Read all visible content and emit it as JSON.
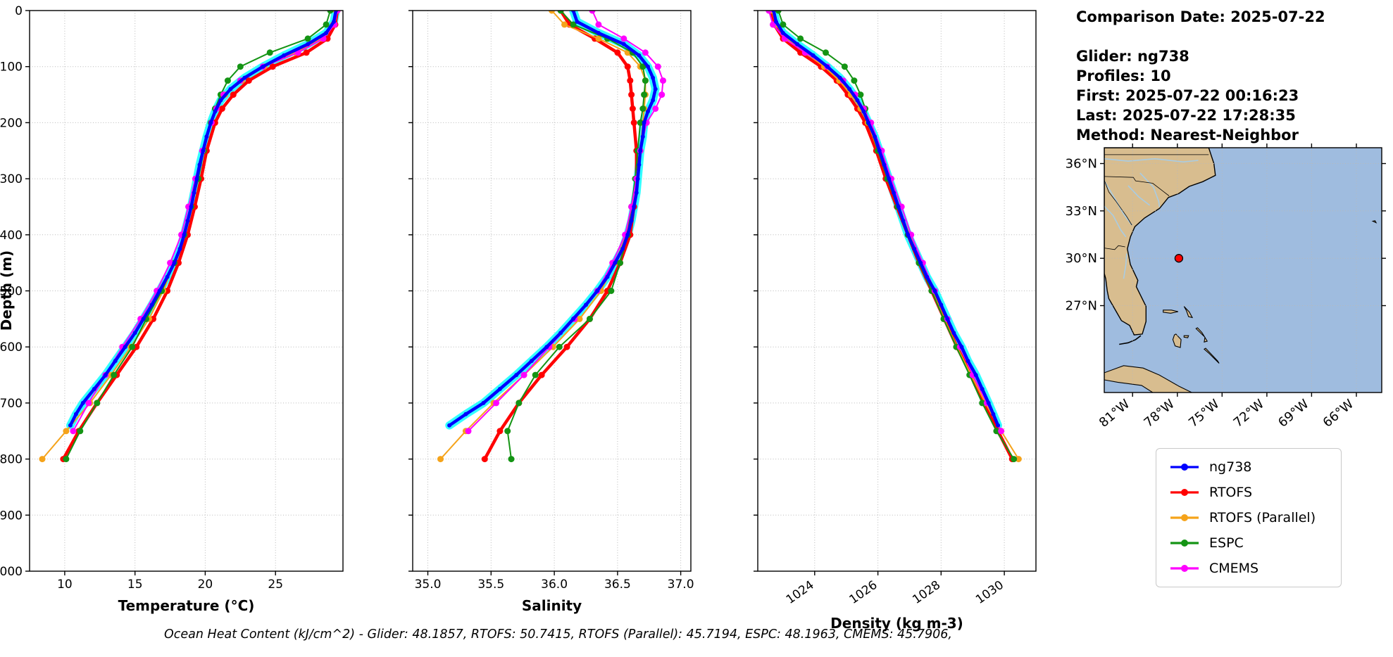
{
  "info": {
    "comparison_date": "Comparison Date: 2025-07-22",
    "glider": "Glider: ng738",
    "profiles": "Profiles: 10",
    "first": "First: 2025-07-22 00:16:23",
    "last": "Last: 2025-07-22 17:28:35",
    "method": "Method: Nearest-Neighbor"
  },
  "footer": {
    "text": "Ocean Heat Content (kJ/cm^2) - Glider: 48.1857,  RTOFS: 50.7415,  RTOFS (Parallel): 45.7194,  ESPC: 48.1963,  CMEMS: 45.7906,"
  },
  "legend": {
    "items": [
      {
        "label": "ng738",
        "color": "#0000ff"
      },
      {
        "label": "RTOFS",
        "color": "#ff0000"
      },
      {
        "label": "RTOFS (Parallel)",
        "color": "#f5a31a"
      },
      {
        "label": "ESPC",
        "color": "#149414"
      },
      {
        "label": "CMEMS",
        "color": "#ff00ff"
      }
    ]
  },
  "map": {
    "extent": {
      "lon": [
        -82.9,
        -64.3
      ],
      "lat": [
        21.5,
        37.0
      ]
    },
    "ocean_color": "#9fbcdf",
    "land_color": "#d8bd8f",
    "river_color": "#a9cce3",
    "lat_ticks": [
      {
        "value": 36,
        "label": "36°N"
      },
      {
        "value": 33,
        "label": "33°N"
      },
      {
        "value": 30,
        "label": "30°N"
      },
      {
        "value": 27,
        "label": "27°N"
      }
    ],
    "lon_ticks": [
      {
        "value": -81,
        "label": "81°W"
      },
      {
        "value": -78,
        "label": "78°W"
      },
      {
        "value": -75,
        "label": "75°W"
      },
      {
        "value": -72,
        "label": "72°W"
      },
      {
        "value": -69,
        "label": "69°W"
      },
      {
        "value": -66,
        "label": "66°W"
      }
    ],
    "marker": {
      "lon": -77.9,
      "lat": 30.0,
      "color": "#ff0000"
    }
  },
  "chart_data": [
    {
      "type": "line",
      "name": "temperature",
      "xlabel": "Temperature (°C)",
      "ylabel": "Depth (m)",
      "xlim": [
        7.5,
        29.8
      ],
      "ylim": [
        0,
        1000
      ],
      "xticks": [
        10,
        15,
        20,
        25
      ],
      "xtick_labels": [
        "10",
        "15",
        "20",
        "25"
      ],
      "yticks": [
        0,
        100,
        200,
        300,
        400,
        500,
        600,
        700,
        800,
        900,
        1000
      ],
      "ytick_labels": [
        "0",
        "100",
        "200",
        "300",
        "400",
        "500",
        "600",
        "700",
        "800",
        "900",
        "1000"
      ],
      "grid": true,
      "series": [
        {
          "name": "ng738",
          "color": "#0000ff",
          "halo": "#00ffff",
          "width": 4.5,
          "marker": 3,
          "depths": [
            0,
            20,
            40,
            60,
            80,
            100,
            120,
            140,
            160,
            180,
            200,
            225,
            250,
            275,
            300,
            325,
            350,
            375,
            400,
            425,
            450,
            475,
            500,
            525,
            550,
            575,
            600,
            625,
            650,
            675,
            700,
            720,
            740
          ],
          "values": [
            29.3,
            29.15,
            28.6,
            27.3,
            25.6,
            24.1,
            22.8,
            21.8,
            21.1,
            20.7,
            20.4,
            20.1,
            19.85,
            19.6,
            19.4,
            19.2,
            19.0,
            18.75,
            18.5,
            18.2,
            17.8,
            17.3,
            16.75,
            16.2,
            15.6,
            15.0,
            14.3,
            13.6,
            12.9,
            12.1,
            11.3,
            10.8,
            10.4
          ]
        },
        {
          "name": "RTOFS",
          "color": "#ff0000",
          "width": 4.5,
          "marker": 4.5,
          "depths": [
            0,
            25,
            50,
            75,
            100,
            125,
            150,
            175,
            200,
            250,
            300,
            350,
            400,
            450,
            500,
            550,
            600,
            650,
            700,
            750,
            800
          ],
          "values": [
            29.4,
            29.25,
            28.7,
            27.2,
            24.8,
            23.1,
            22.0,
            21.2,
            20.7,
            20.1,
            19.7,
            19.25,
            18.75,
            18.1,
            17.3,
            16.3,
            15.1,
            13.7,
            12.3,
            11.0,
            9.9
          ]
        },
        {
          "name": "RTOFS-Parallel",
          "color": "#f5a31a",
          "width": 2,
          "marker": 4.5,
          "depths": [
            0,
            25,
            50,
            75,
            100,
            125,
            150,
            175,
            200,
            250,
            300,
            350,
            400,
            450,
            500,
            550,
            600,
            650,
            700,
            750,
            800
          ],
          "values": [
            29.3,
            29.1,
            28.3,
            26.4,
            24.2,
            22.6,
            21.4,
            20.8,
            20.4,
            19.9,
            19.5,
            19.0,
            18.5,
            17.8,
            17.0,
            16.0,
            14.7,
            13.3,
            11.8,
            10.1,
            8.4
          ]
        },
        {
          "name": "ESPC",
          "color": "#149414",
          "width": 2,
          "marker": 4.5,
          "depths": [
            0,
            25,
            50,
            75,
            100,
            125,
            150,
            175,
            200,
            250,
            300,
            350,
            400,
            450,
            500,
            550,
            600,
            650,
            700,
            750,
            800
          ],
          "values": [
            28.9,
            28.6,
            27.3,
            24.6,
            22.5,
            21.6,
            21.1,
            20.7,
            20.4,
            19.9,
            19.5,
            19.0,
            18.5,
            17.8,
            16.9,
            15.8,
            14.8,
            13.5,
            12.3,
            11.1,
            10.1
          ]
        },
        {
          "name": "CMEMS",
          "color": "#ff00ff",
          "width": 2,
          "marker": 4.5,
          "depths": [
            0,
            25,
            50,
            75,
            100,
            125,
            150,
            175,
            200,
            250,
            300,
            350,
            400,
            450,
            500,
            550,
            600,
            650,
            700,
            750
          ],
          "values": [
            29.4,
            29.2,
            28.4,
            26.6,
            24.1,
            22.5,
            21.3,
            20.8,
            20.45,
            19.8,
            19.3,
            18.8,
            18.3,
            17.5,
            16.55,
            15.4,
            14.1,
            12.9,
            11.7,
            10.6
          ]
        }
      ]
    },
    {
      "type": "line",
      "name": "salinity",
      "xlabel": "Salinity",
      "ylabel": "",
      "xlim": [
        34.88,
        37.08
      ],
      "ylim": [
        0,
        1000
      ],
      "xticks": [
        35.0,
        35.5,
        36.0,
        36.5,
        37.0
      ],
      "xtick_labels": [
        "35.0",
        "35.5",
        "36.0",
        "36.5",
        "37.0"
      ],
      "yticks": [
        0,
        100,
        200,
        300,
        400,
        500,
        600,
        700,
        800,
        900,
        1000
      ],
      "ytick_labels": [
        "0",
        "100",
        "200",
        "300",
        "400",
        "500",
        "600",
        "700",
        "800",
        "900",
        "1000"
      ],
      "grid": true,
      "series": [
        {
          "name": "ng738",
          "color": "#0000ff",
          "halo": "#00ffff",
          "width": 4.5,
          "marker": 3,
          "depths": [
            0,
            20,
            40,
            60,
            80,
            100,
            120,
            140,
            160,
            180,
            200,
            225,
            250,
            275,
            300,
            325,
            350,
            375,
            400,
            425,
            450,
            475,
            500,
            525,
            550,
            575,
            600,
            625,
            650,
            675,
            700,
            720,
            740
          ],
          "values": [
            36.15,
            36.18,
            36.35,
            36.55,
            36.67,
            36.74,
            36.78,
            36.8,
            36.78,
            36.74,
            36.71,
            36.7,
            36.68,
            36.67,
            36.66,
            36.65,
            36.63,
            36.61,
            36.58,
            36.54,
            36.48,
            36.42,
            36.34,
            36.25,
            36.15,
            36.05,
            35.94,
            35.82,
            35.7,
            35.57,
            35.44,
            35.3,
            35.17
          ]
        },
        {
          "name": "RTOFS",
          "color": "#ff0000",
          "width": 4.5,
          "marker": 4.5,
          "depths": [
            0,
            25,
            50,
            75,
            100,
            125,
            150,
            175,
            200,
            250,
            300,
            350,
            400,
            450,
            500,
            550,
            600,
            650,
            700,
            750,
            800
          ],
          "values": [
            36.05,
            36.12,
            36.32,
            36.5,
            36.58,
            36.6,
            36.61,
            36.62,
            36.63,
            36.65,
            36.65,
            36.63,
            36.6,
            36.52,
            36.42,
            36.28,
            36.1,
            35.9,
            35.72,
            35.57,
            35.45
          ]
        },
        {
          "name": "RTOFS-Parallel",
          "color": "#f5a31a",
          "width": 2,
          "marker": 4.5,
          "depths": [
            0,
            25,
            50,
            75,
            100,
            125,
            150,
            175,
            200,
            250,
            300,
            350,
            400,
            450,
            500,
            550,
            600,
            650,
            700,
            750,
            800
          ],
          "values": [
            35.98,
            36.08,
            36.35,
            36.58,
            36.68,
            36.72,
            36.72,
            36.71,
            36.7,
            36.68,
            36.65,
            36.62,
            36.57,
            36.48,
            36.37,
            36.2,
            35.99,
            35.76,
            35.52,
            35.3,
            35.1
          ]
        },
        {
          "name": "ESPC",
          "color": "#149414",
          "width": 2,
          "marker": 4.5,
          "depths": [
            0,
            25,
            50,
            75,
            100,
            125,
            150,
            175,
            200,
            250,
            300,
            350,
            400,
            450,
            500,
            550,
            600,
            650,
            700,
            750,
            800
          ],
          "values": [
            36.05,
            36.15,
            36.42,
            36.62,
            36.7,
            36.72,
            36.71,
            36.7,
            36.68,
            36.66,
            36.64,
            36.61,
            36.58,
            36.52,
            36.45,
            36.28,
            36.04,
            35.85,
            35.72,
            35.63,
            35.66
          ]
        },
        {
          "name": "CMEMS",
          "color": "#ff00ff",
          "width": 2,
          "marker": 4.5,
          "depths": [
            0,
            25,
            50,
            75,
            100,
            125,
            150,
            175,
            200,
            250,
            300,
            350,
            400,
            450,
            500,
            550,
            600,
            650,
            700,
            750
          ],
          "values": [
            36.3,
            36.35,
            36.55,
            36.72,
            36.82,
            36.86,
            36.85,
            36.8,
            36.73,
            36.68,
            36.65,
            36.61,
            36.56,
            36.46,
            36.34,
            36.16,
            35.96,
            35.76,
            35.54,
            35.32
          ]
        }
      ]
    },
    {
      "type": "line",
      "name": "density",
      "xlabel": "Density (kg m-3)",
      "ylabel": "",
      "xlim": [
        1022.2,
        1031.0
      ],
      "ylim": [
        0,
        1000
      ],
      "xticks": [
        1024,
        1026,
        1028,
        1030
      ],
      "xtick_labels": [
        "1024",
        "1026",
        "1028",
        "1030"
      ],
      "rotate_xticks": true,
      "yticks": [
        0,
        100,
        200,
        300,
        400,
        500,
        600,
        700,
        800,
        900,
        1000
      ],
      "ytick_labels": [
        "0",
        "100",
        "200",
        "300",
        "400",
        "500",
        "600",
        "700",
        "800",
        "900",
        "1000"
      ],
      "grid": true,
      "series": [
        {
          "name": "ng738",
          "color": "#0000ff",
          "halo": "#00ffff",
          "width": 4.5,
          "marker": 3,
          "depths": [
            0,
            20,
            40,
            60,
            80,
            100,
            120,
            140,
            160,
            180,
            200,
            225,
            250,
            275,
            300,
            325,
            350,
            375,
            400,
            425,
            450,
            475,
            500,
            525,
            550,
            575,
            600,
            625,
            650,
            675,
            700,
            720,
            740
          ],
          "values": [
            1022.7,
            1022.78,
            1023.0,
            1023.45,
            1023.95,
            1024.4,
            1024.8,
            1025.1,
            1025.35,
            1025.55,
            1025.7,
            1025.9,
            1026.05,
            1026.2,
            1026.35,
            1026.5,
            1026.65,
            1026.8,
            1026.95,
            1027.15,
            1027.35,
            1027.55,
            1027.8,
            1028.0,
            1028.2,
            1028.4,
            1028.65,
            1028.85,
            1029.1,
            1029.3,
            1029.5,
            1029.65,
            1029.8
          ]
        },
        {
          "name": "RTOFS",
          "color": "#ff0000",
          "width": 4.5,
          "marker": 4.5,
          "depths": [
            0,
            25,
            50,
            75,
            100,
            125,
            150,
            175,
            200,
            250,
            300,
            350,
            400,
            450,
            500,
            550,
            600,
            650,
            700,
            750,
            800
          ],
          "values": [
            1022.62,
            1022.72,
            1023.0,
            1023.55,
            1024.2,
            1024.7,
            1025.05,
            1025.35,
            1025.6,
            1025.95,
            1026.25,
            1026.6,
            1026.95,
            1027.3,
            1027.7,
            1028.1,
            1028.5,
            1028.95,
            1029.35,
            1029.8,
            1030.25
          ]
        },
        {
          "name": "RTOFS-Parallel",
          "color": "#f5a31a",
          "width": 2,
          "marker": 4.5,
          "depths": [
            0,
            25,
            50,
            75,
            100,
            125,
            150,
            175,
            200,
            250,
            300,
            350,
            400,
            450,
            500,
            550,
            600,
            650,
            700,
            750,
            800
          ],
          "values": [
            1022.65,
            1022.78,
            1023.1,
            1023.7,
            1024.3,
            1024.78,
            1025.15,
            1025.45,
            1025.68,
            1026.0,
            1026.3,
            1026.65,
            1027.0,
            1027.35,
            1027.72,
            1028.1,
            1028.5,
            1028.95,
            1029.4,
            1029.9,
            1030.45
          ]
        },
        {
          "name": "ESPC",
          "color": "#149414",
          "width": 2,
          "marker": 4.5,
          "depths": [
            0,
            25,
            50,
            75,
            100,
            125,
            150,
            175,
            200,
            250,
            300,
            350,
            400,
            450,
            500,
            550,
            600,
            650,
            700,
            750,
            800
          ],
          "values": [
            1022.85,
            1023.0,
            1023.55,
            1024.35,
            1024.95,
            1025.25,
            1025.45,
            1025.6,
            1025.72,
            1026.0,
            1026.3,
            1026.62,
            1026.95,
            1027.3,
            1027.7,
            1028.08,
            1028.48,
            1028.9,
            1029.3,
            1029.75,
            1030.3
          ]
        },
        {
          "name": "CMEMS",
          "color": "#ff00ff",
          "width": 2,
          "marker": 4.5,
          "depths": [
            0,
            25,
            50,
            75,
            100,
            125,
            150,
            175,
            200,
            250,
            300,
            350,
            400,
            450,
            500,
            550,
            600,
            650,
            700,
            750
          ],
          "values": [
            1022.55,
            1022.68,
            1023.05,
            1023.7,
            1024.4,
            1024.9,
            1025.28,
            1025.55,
            1025.78,
            1026.12,
            1026.42,
            1026.75,
            1027.05,
            1027.42,
            1027.8,
            1028.2,
            1028.6,
            1029.0,
            1029.45,
            1029.9
          ]
        }
      ]
    }
  ]
}
